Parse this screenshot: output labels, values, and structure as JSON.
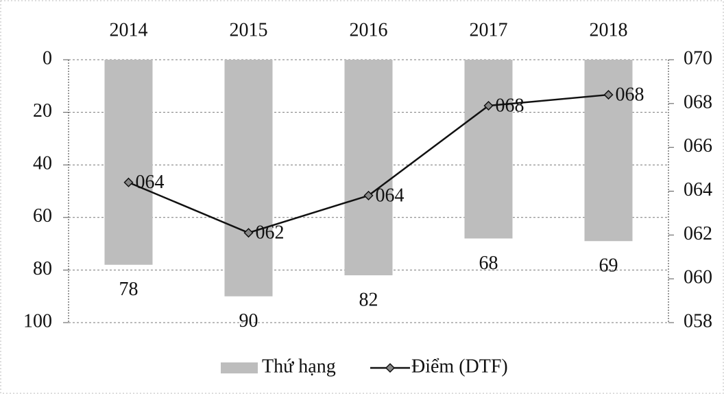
{
  "chart_data": {
    "type": "bar_line",
    "categories": [
      "2014",
      "2015",
      "2016",
      "2017",
      "2018"
    ],
    "series": [
      {
        "name": "Thứ hạng",
        "type": "bar",
        "color": "#bdbdbd",
        "values": [
          78,
          90,
          82,
          68,
          69
        ]
      },
      {
        "name": "Điểm (DTF)",
        "type": "line",
        "axis": "y2",
        "color": "#111111",
        "values": [
          64.4,
          62.1,
          63.8,
          67.9,
          68.4
        ],
        "value_labels": [
          "064",
          "062",
          "064",
          "068",
          "068"
        ]
      }
    ],
    "ylim": [
      100,
      0
    ],
    "yticks": [
      0,
      20,
      40,
      60,
      80,
      100
    ],
    "y2lim": [
      58,
      70
    ],
    "y2ticks": [
      {
        "value": 70,
        "label": "070"
      },
      {
        "value": 68,
        "label": "068"
      },
      {
        "value": 66,
        "label": "066"
      },
      {
        "value": 64,
        "label": "064"
      },
      {
        "value": 62,
        "label": "062"
      },
      {
        "value": 60,
        "label": "060"
      },
      {
        "value": 58,
        "label": "058"
      }
    ],
    "grid": true,
    "legend": "bottom"
  }
}
